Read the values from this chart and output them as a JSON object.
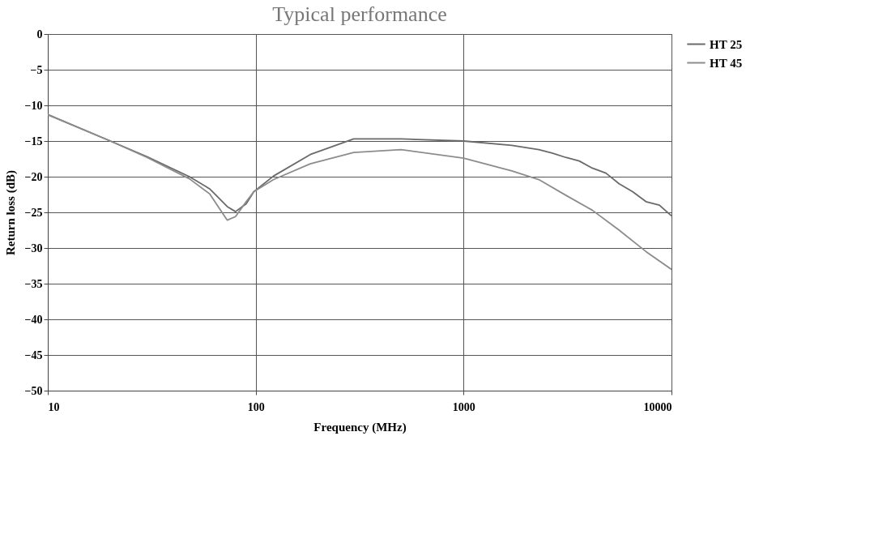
{
  "chart_data": {
    "type": "line",
    "title": "Typical performance",
    "xlabel": "Frequency (MHz)",
    "ylabel": "Return loss (dB)",
    "log": "x",
    "grid": true,
    "legend": "right",
    "line_style": "solid",
    "marker": "none",
    "xlim": [
      10,
      10000
    ],
    "xticks": [
      10,
      100,
      1000,
      10000
    ],
    "ylim": [
      -50,
      0
    ],
    "yticks": [
      0,
      -5,
      -10,
      -15,
      -20,
      -25,
      -30,
      -35,
      -40,
      -45,
      -50
    ],
    "series": [
      {
        "name": "HT 25",
        "color": "#6a6a6a",
        "x": [
          10,
          20,
          30,
          48,
          60,
          73,
          80,
          90,
          98,
          122,
          183,
          296,
          500,
          1000,
          1707,
          2300,
          2667,
          3100,
          3600,
          4160,
          4840,
          5600,
          6500,
          7540,
          8750,
          10000
        ],
        "values": [
          -11.3,
          -15,
          -17.2,
          -20,
          -21.7,
          -24.2,
          -24.9,
          -23.8,
          -22.1,
          -19.9,
          -16.9,
          -14.7,
          -14.7,
          -15,
          -15.6,
          -16.2,
          -16.7,
          -17.3,
          -17.8,
          -18.8,
          -19.5,
          -21,
          -22.1,
          -23.5,
          -24,
          -25.5
        ]
      },
      {
        "name": "HT 45",
        "color": "#8c8c8c",
        "x": [
          10,
          20,
          30,
          48,
          60,
          73,
          80,
          90,
          98,
          122,
          183,
          296,
          500,
          1000,
          1707,
          2300,
          3100,
          4160,
          5600,
          7540,
          10000
        ],
        "values": [
          -11.3,
          -15,
          -17.3,
          -20.3,
          -22.4,
          -26.1,
          -25.6,
          -23.5,
          -22.1,
          -20.4,
          -18.2,
          -16.6,
          -16.2,
          -17.4,
          -19.2,
          -20.4,
          -22.6,
          -24.7,
          -27.5,
          -30.5,
          -33
        ]
      }
    ]
  }
}
